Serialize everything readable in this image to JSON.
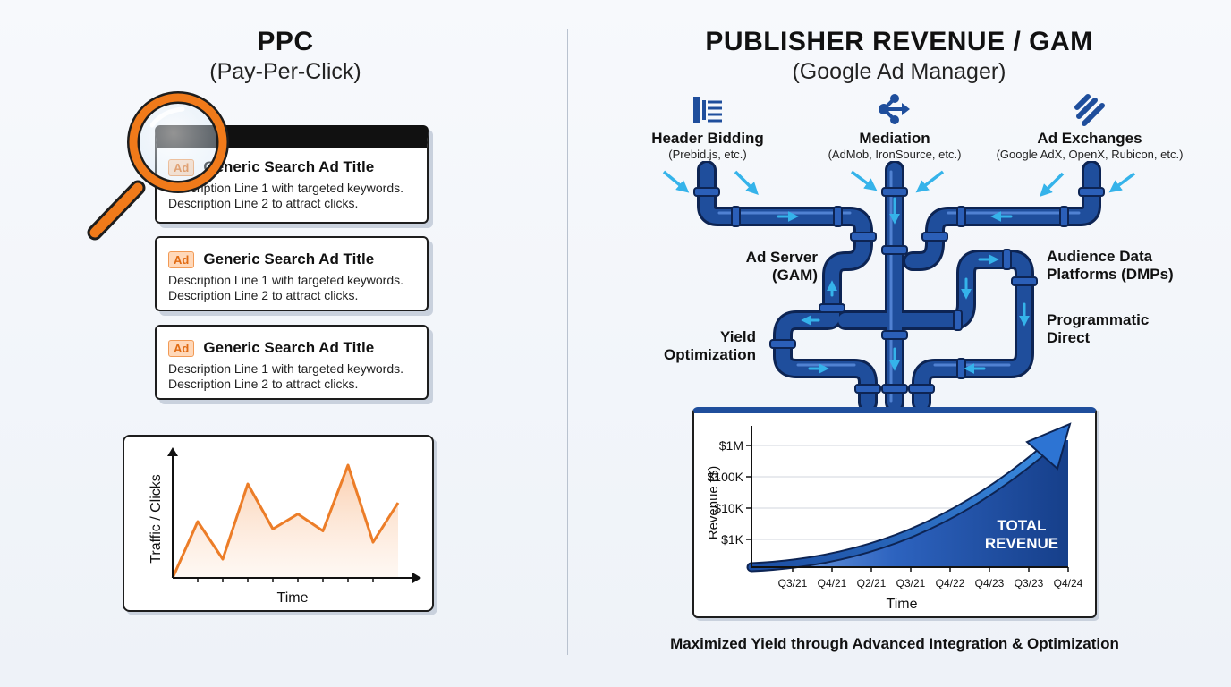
{
  "ppc": {
    "title": "PPC",
    "subtitle": "(Pay-Per-Click)",
    "ads": [
      {
        "badge": "Ad",
        "title": "Generic Search Ad Title",
        "line1": "Description Line 1 with targeted keywords.",
        "line2": "Description Line 2 to attract clicks."
      },
      {
        "badge": "Ad",
        "title": "Generic Search Ad Title",
        "line1": "Description Line 1 with targeted keywords.",
        "line2": "Description Line 2 to attract clicks."
      },
      {
        "badge": "Ad",
        "title": "Generic Search Ad Title",
        "line1": "Description Line 1 with targeted keywords.",
        "line2": "Description Line 2 to attract clicks."
      }
    ],
    "magnifier_icon": "magnifying-glass-icon",
    "chart": {
      "ylabel": "Traffic / Clicks",
      "xlabel": "Time",
      "values": [
        0,
        3,
        1,
        5,
        2.6,
        3.4,
        2.5,
        6,
        1.9,
        4
      ]
    }
  },
  "gam": {
    "title": "PUBLISHER REVENUE / GAM",
    "subtitle": "(Google Ad Manager)",
    "sources": [
      {
        "name": "Header Bidding",
        "detail": "(Prebid.js, etc.)",
        "icon": "header-bidding-icon"
      },
      {
        "name": "Mediation",
        "detail": "(AdMob, IronSource, etc.)",
        "icon": "share-nodes-icon"
      },
      {
        "name": "Ad Exchanges",
        "detail": "(Google AdX, OpenX, Rubicon, etc.)",
        "icon": "exchange-slashes-icon"
      }
    ],
    "labels": {
      "ad_server": "Ad Server\n(GAM)",
      "yield": "Yield\nOptimization",
      "dmp": "Audience Data\nPlatforms (DMPs)",
      "programmatic": "Programmatic\nDirect"
    },
    "pipe_color": "#1f4e9c",
    "footer": "Maximized Yield through Advanced Integration & Optimization"
  },
  "chart_data": {
    "type": "area",
    "ylabel": "Revenue ($)",
    "xlabel": "Time",
    "y_ticks": [
      "$1K",
      "$10K",
      "$100K",
      "$1M"
    ],
    "categories": [
      "Q3/21",
      "Q4/21",
      "Q2/21",
      "Q3/21",
      "Q4/22",
      "Q4/23",
      "Q3/23",
      "Q4/24"
    ],
    "annotation": "TOTAL\nREVENUE",
    "log_scale": true,
    "grid": true,
    "series_color": "#1f4e9c"
  }
}
